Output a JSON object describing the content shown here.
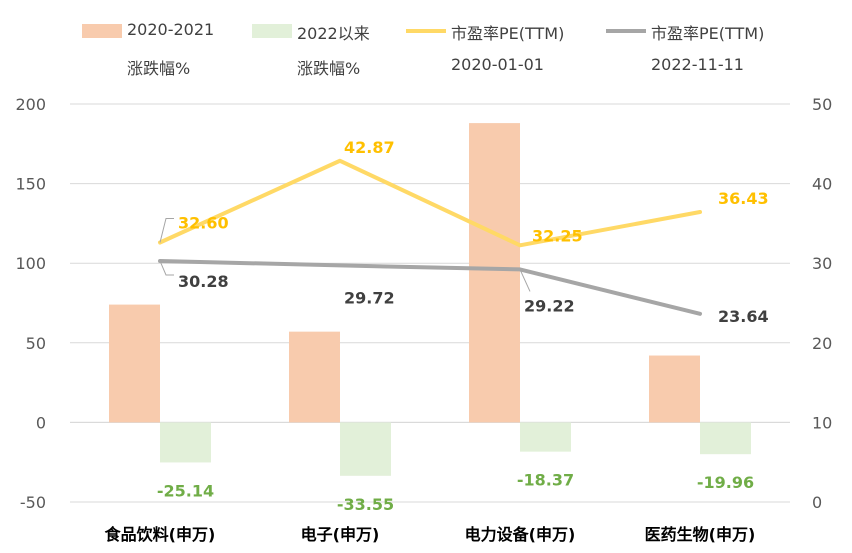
{
  "chart_data": {
    "type": "bar+line",
    "categories": [
      "食品饮料(申万)",
      "电子(申万)",
      "电力设备(申万)",
      "医药生物(申万)"
    ],
    "bar_series": [
      {
        "name": "2020-2021涨跌幅%",
        "legend_line1": "2020-2021",
        "legend_line2": "涨跌幅%",
        "color": "#F8CBAD",
        "values": [
          74,
          57,
          188,
          42
        ],
        "labels": [
          null,
          null,
          null,
          null
        ]
      },
      {
        "name": "2022以来涨跌幅%",
        "legend_line1": "2022以来",
        "legend_line2": "涨跌幅%",
        "color": "#E2F0D9",
        "values": [
          -25.14,
          -33.55,
          -18.37,
          -19.96
        ],
        "labels": [
          "-25.14",
          "-33.55",
          "-18.37",
          "-19.96"
        ],
        "label_color": "#70AD47"
      }
    ],
    "line_series": [
      {
        "name": "市盈率PE(TTM) 2020-01-01",
        "legend_line1": "市盈率PE(TTM)",
        "legend_line2": "2020-01-01",
        "color": "#FFD966",
        "label_color": "#FFC000",
        "values": [
          32.6,
          42.87,
          32.25,
          36.43
        ],
        "labels": [
          "32.60",
          "42.87",
          "32.25",
          "36.43"
        ]
      },
      {
        "name": "市盈率PE(TTM) 2022-11-11",
        "legend_line1": "市盈率PE(TTM)",
        "legend_line2": "2022-11-11",
        "color": "#A6A6A6",
        "label_color": "#404040",
        "values": [
          30.28,
          29.72,
          29.22,
          23.64
        ],
        "labels": [
          "30.28",
          "29.72",
          "29.22",
          "23.64"
        ]
      }
    ],
    "y_left": {
      "min": -50,
      "max": 200,
      "ticks": [
        "200",
        "150",
        "100",
        "50",
        "0",
        "-50"
      ]
    },
    "y_right": {
      "min": 0,
      "max": 50,
      "ticks": [
        "50",
        "40",
        "30",
        "20",
        "10",
        "0"
      ]
    },
    "grid": true,
    "legend_position": "top"
  }
}
